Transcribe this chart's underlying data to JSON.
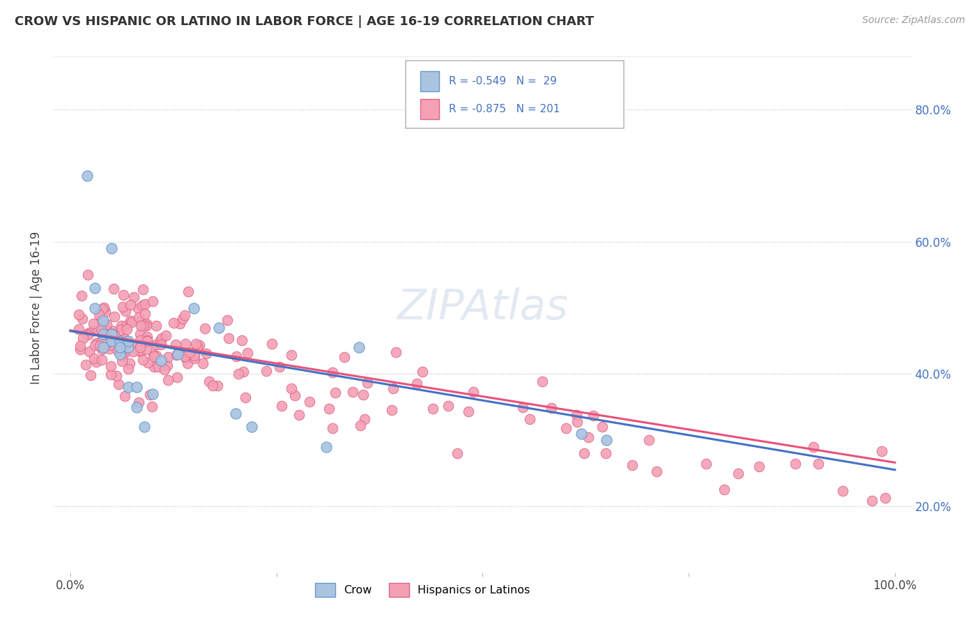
{
  "title": "CROW VS HISPANIC OR LATINO IN LABOR FORCE | AGE 16-19 CORRELATION CHART",
  "source": "Source: ZipAtlas.com",
  "ylabel": "In Labor Force | Age 16-19",
  "xlim": [
    -0.02,
    1.02
  ],
  "ylim": [
    0.1,
    0.9
  ],
  "yticks": [
    0.2,
    0.4,
    0.6,
    0.8
  ],
  "ytick_labels": [
    "20.0%",
    "40.0%",
    "60.0%",
    "80.0%"
  ],
  "xticks": [
    0.0,
    0.25,
    0.5,
    0.75,
    1.0
  ],
  "xtick_labels": [
    "0.0%",
    "",
    "",
    "",
    "100.0%"
  ],
  "background_color": "#ffffff",
  "grid_color": "#c8c8c8",
  "crow_color": "#aac4e0",
  "crow_edge_color": "#6699cc",
  "hispanic_color": "#f4a0b5",
  "hispanic_edge_color": "#dd6688",
  "line_blue": "#4472c4",
  "line_pink": "#e8527a",
  "legend_R1": "-0.549",
  "legend_N1": "29",
  "legend_R2": "-0.875",
  "legend_N2": "201",
  "label_crow": "Crow",
  "label_hispanic": "Hispanics or Latinos",
  "watermark": "ZIPAtlas",
  "crow_x": [
    0.02,
    0.03,
    0.04,
    0.04,
    0.05,
    0.05,
    0.05,
    0.06,
    0.06,
    0.07,
    0.07,
    0.08,
    0.09,
    0.1,
    0.11,
    0.13,
    0.15,
    0.18,
    0.2,
    0.22,
    0.31,
    0.35,
    0.62,
    0.65,
    0.04,
    0.06,
    0.03,
    0.07,
    0.08
  ],
  "crow_y": [
    0.7,
    0.53,
    0.48,
    0.46,
    0.46,
    0.45,
    0.59,
    0.45,
    0.43,
    0.44,
    0.38,
    0.38,
    0.32,
    0.37,
    0.42,
    0.43,
    0.5,
    0.47,
    0.34,
    0.32,
    0.29,
    0.44,
    0.31,
    0.3,
    0.44,
    0.44,
    0.5,
    0.45,
    0.35
  ]
}
